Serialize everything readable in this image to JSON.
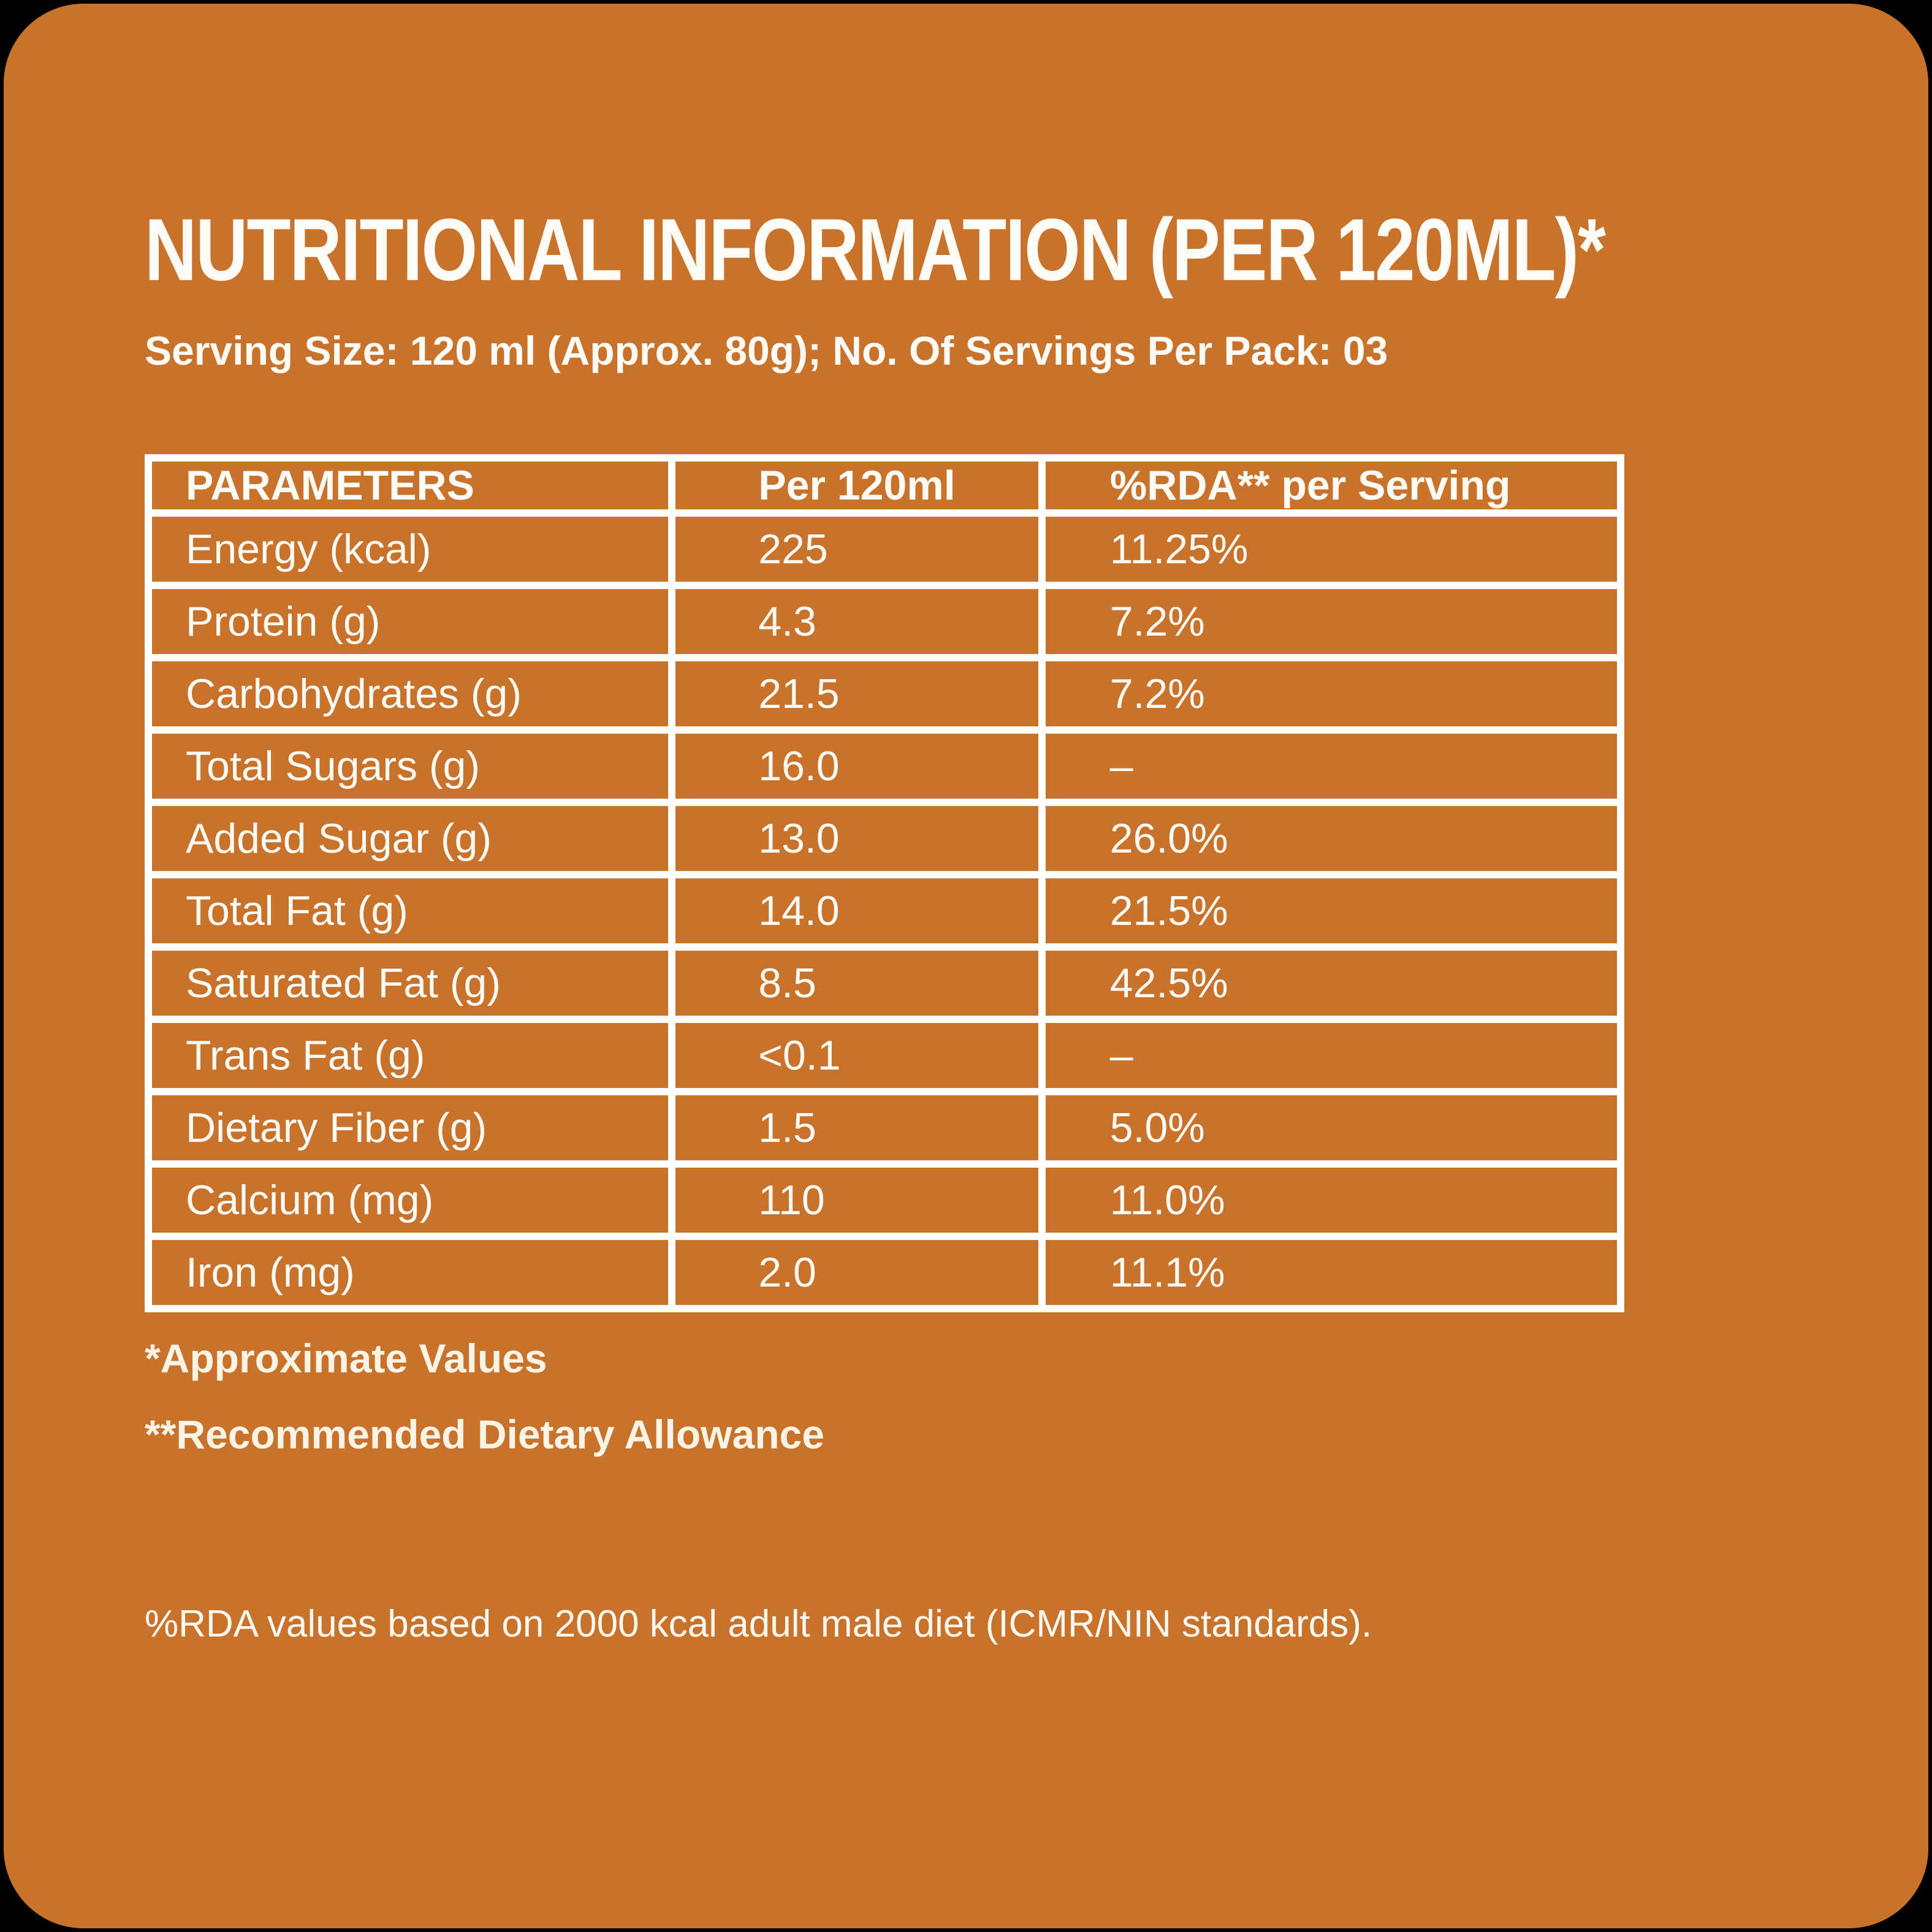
{
  "colors": {
    "background_outer": "#000000",
    "card_orange": "#C9722B",
    "grid_white": "#FFFFFF",
    "text_white": "#FDFBF5",
    "footnote_cream": "#FAF4E7"
  },
  "header": {
    "title": "NUTRITIONAL INFORMATION (PER 120ML)*",
    "subtitle": "Serving Size: 120 ml (Approx. 80g); No. Of Servings Per Pack: 03"
  },
  "table": {
    "columns": [
      "PARAMETERS",
      "Per 120ml",
      "%RDA** per Serving"
    ],
    "rows": [
      {
        "parameter": "Energy (kcal)",
        "per_120ml": "225",
        "rda": "11.25%"
      },
      {
        "parameter": "Protein (g)",
        "per_120ml": "4.3",
        "rda": "7.2%"
      },
      {
        "parameter": "Carbohydrates (g)",
        "per_120ml": "21.5",
        "rda": "7.2%"
      },
      {
        "parameter": "Total Sugars (g)",
        "per_120ml": "16.0",
        "rda": "–"
      },
      {
        "parameter": "Added Sugar (g)",
        "per_120ml": "13.0",
        "rda": "26.0%"
      },
      {
        "parameter": "Total Fat (g)",
        "per_120ml": "14.0",
        "rda": "21.5%"
      },
      {
        "parameter": "Saturated Fat (g)",
        "per_120ml": "8.5",
        "rda": "42.5%"
      },
      {
        "parameter": "Trans Fat (g)",
        "per_120ml": "<0.1",
        "rda": "–"
      },
      {
        "parameter": "Dietary Fiber (g)",
        "per_120ml": "1.5",
        "rda": "5.0%"
      },
      {
        "parameter": "Calcium (mg)",
        "per_120ml": "110",
        "rda": "11.0%"
      },
      {
        "parameter": "Iron (mg)",
        "per_120ml": "2.0",
        "rda": "11.1%"
      }
    ]
  },
  "footnotes": [
    "*Approximate Values",
    "**Recommended Dietary Allowance"
  ],
  "rda_note": "%RDA values based on 2000 kcal adult male diet (ICMR/NIN standards)."
}
